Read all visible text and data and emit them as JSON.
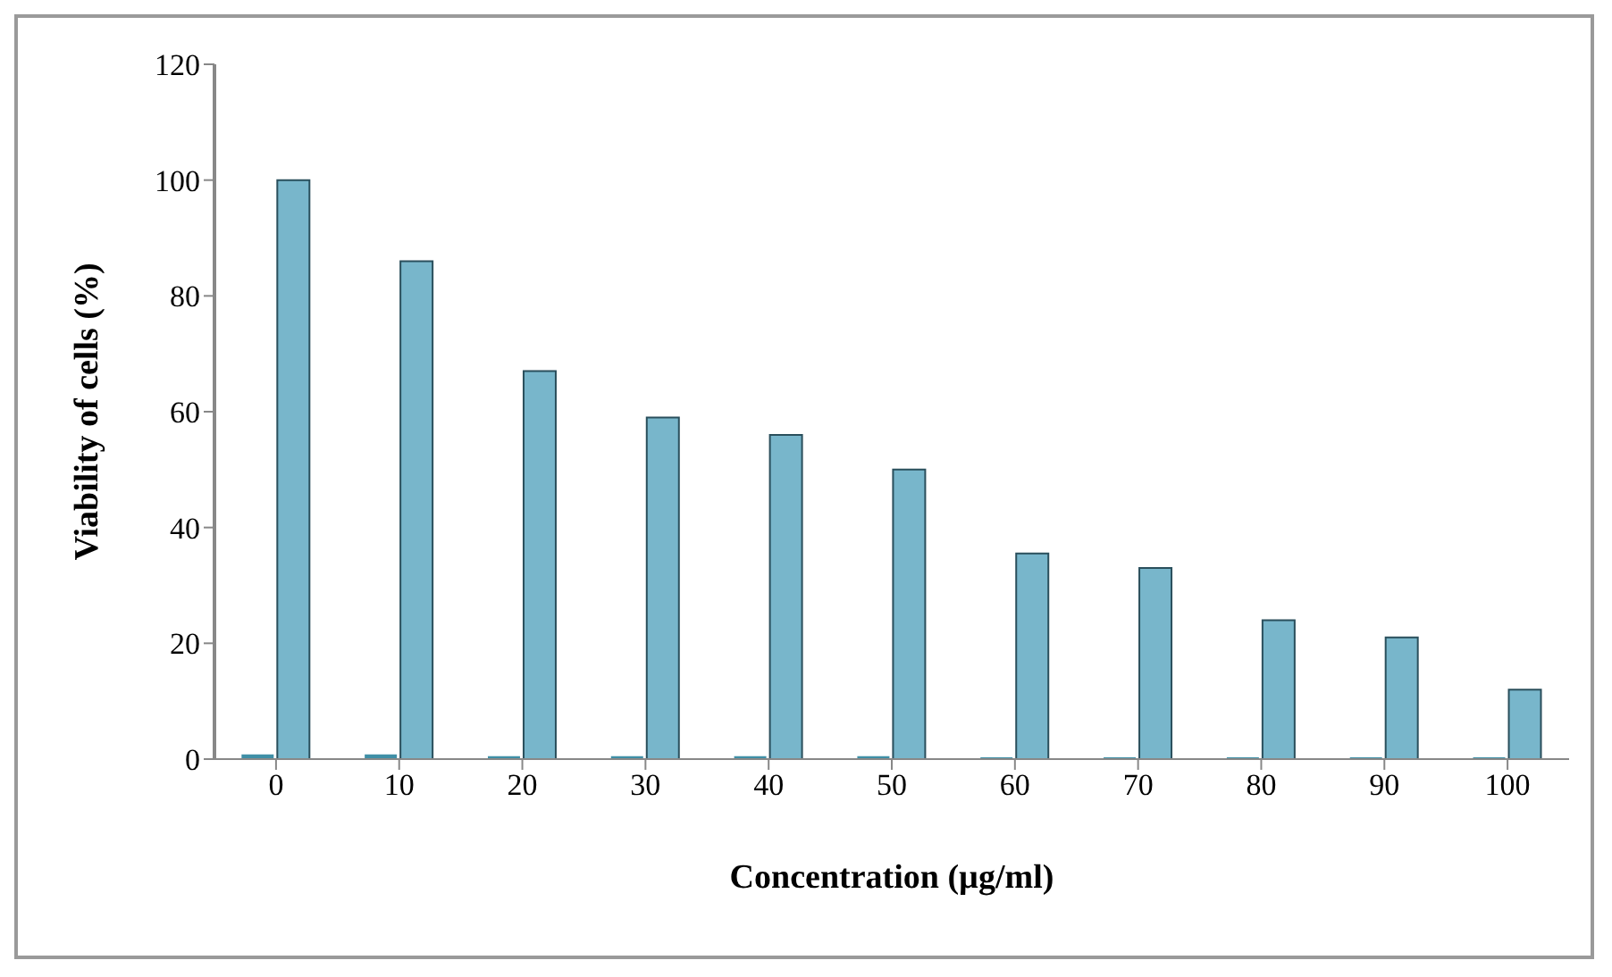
{
  "chart_data": {
    "type": "bar",
    "xlabel": "Concentration (µg/ml)",
    "ylabel": "Viability of cells (%)",
    "categories": [
      "0",
      "10",
      "20",
      "30",
      "40",
      "50",
      "60",
      "70",
      "80",
      "90",
      "100"
    ],
    "series": [
      {
        "color": "#3f8fa6",
        "values": [
          0.8,
          0.8,
          0.5,
          0.5,
          0.5,
          0.5,
          0.3,
          0.3,
          0.3,
          0.3,
          0.3
        ]
      },
      {
        "color": "#78b6cb",
        "values": [
          100,
          86,
          67,
          59,
          56,
          50,
          35.5,
          33,
          24,
          21,
          12
        ]
      }
    ],
    "ylim": [
      0,
      120
    ],
    "yticks": [
      0,
      20,
      40,
      60,
      80,
      100,
      120
    ],
    "grid": false,
    "legend": false
  }
}
